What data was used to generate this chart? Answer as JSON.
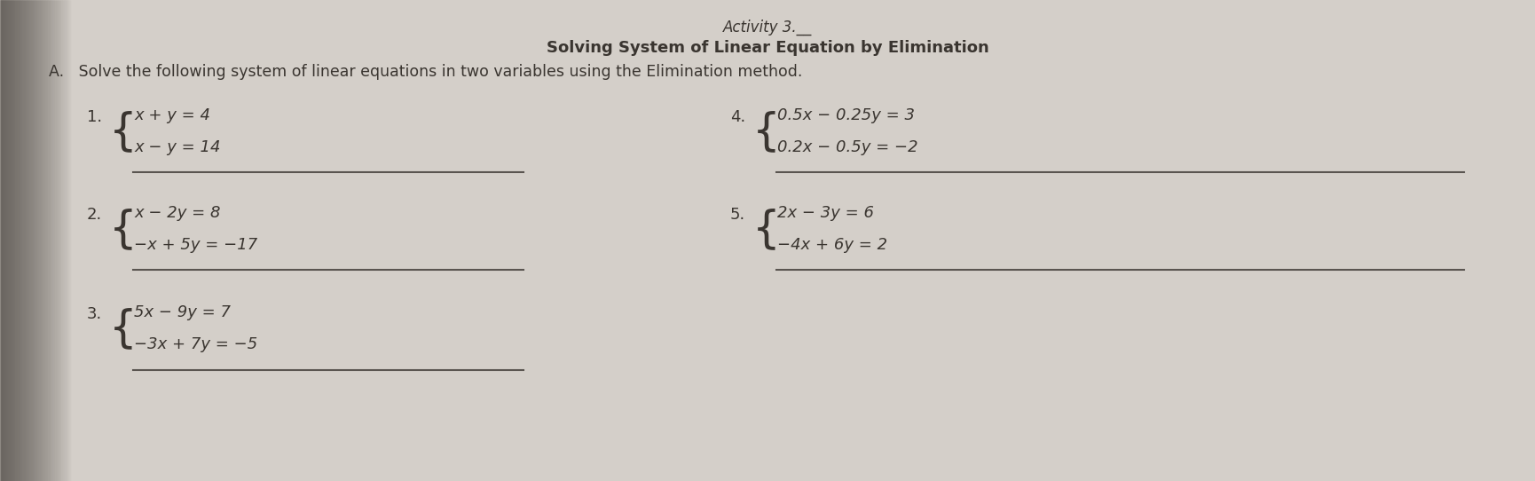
{
  "bg_color": "#d4cfc9",
  "bg_color_right": "#cac5bf",
  "left_shadow": "#b8b3ae",
  "text_color": "#3a3530",
  "title_line1": "Activity 3.__",
  "title_line2": "Solving System of Linear Equation by Elimination",
  "instruction": "A.   Solve the following system of linear equations in two variables using the Elimination method.",
  "problems": [
    {
      "number": "1.",
      "eq1": "x + y = 4",
      "eq2": "x − y = 14"
    },
    {
      "number": "2.",
      "eq1": "x − 2y = 8",
      "eq2": "−x + 5y = −17"
    },
    {
      "number": "3.",
      "eq1": "5x − 9y = 7",
      "eq2": "−3x + 7y = −5"
    },
    {
      "number": "4.",
      "eq1": "0.5x − 0.25y = 3",
      "eq2": "0.2x − 0.5y = −2"
    },
    {
      "number": "5.",
      "eq1": "2x − 3y = 6",
      "eq2": "−4x + 6y = 2"
    }
  ],
  "title1_fontsize": 12,
  "title2_fontsize": 13,
  "instruction_fontsize": 12.5,
  "number_fontsize": 13,
  "eq_fontsize": 13,
  "brace_fontsize": 36,
  "line_color": "#5a5550",
  "line_width": 1.5
}
